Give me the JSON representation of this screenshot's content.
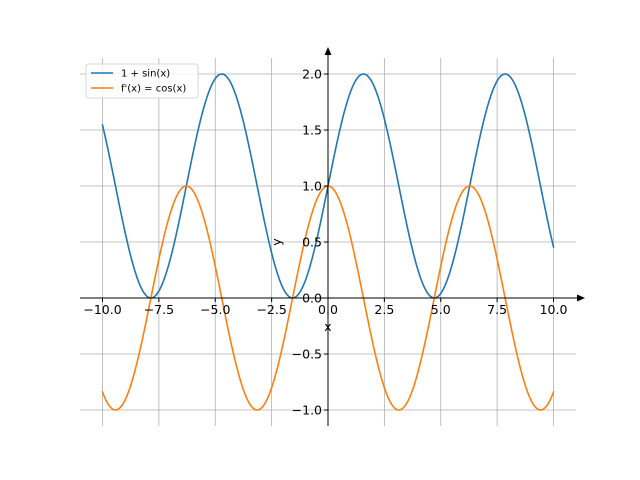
{
  "chart_data": {
    "type": "line",
    "title": "",
    "xlabel": "x",
    "ylabel": "y",
    "xlim": [
      -10.0,
      10.0
    ],
    "ylim": [
      -1.0,
      2.0
    ],
    "x_ticks": [
      -10.0,
      -7.5,
      -5.0,
      -2.5,
      0.0,
      2.5,
      5.0,
      7.5,
      10.0
    ],
    "x_tick_labels": [
      "−10.0",
      "−7.5",
      "−5.0",
      "−2.5",
      "0.0",
      "2.5",
      "5.0",
      "7.5",
      "10.0"
    ],
    "y_ticks": [
      -1.0,
      -0.5,
      0.0,
      0.5,
      1.0,
      1.5,
      2.0
    ],
    "y_tick_labels": [
      "−1.0",
      "−0.5",
      "0.0",
      "0.5",
      "1.0",
      "1.5",
      "2.0"
    ],
    "grid": true,
    "legend_position": "top-left",
    "series": [
      {
        "name": "1 + sin(x)",
        "expression": "1 + sin(x)",
        "color": "#1f77b4"
      },
      {
        "name": "f'(x) = cos(x)",
        "expression": "cos(x)",
        "color": "#ff7f0e"
      }
    ],
    "x_domain": [
      -10.0,
      10.0
    ],
    "samples": 400
  },
  "colors": {
    "grid": "#b0b0b0",
    "axis": "#000000",
    "arrow": "#000000",
    "legend_border": "#cccccc"
  }
}
